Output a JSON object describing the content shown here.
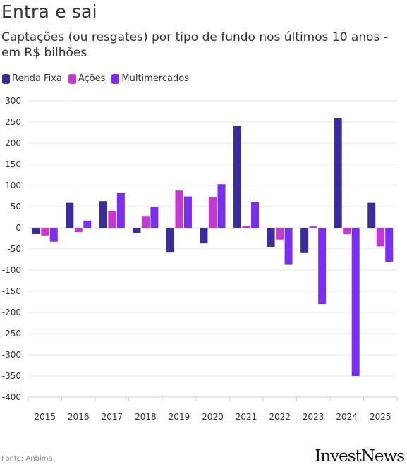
{
  "title": "Entra e sai",
  "subtitle": "Captações (ou resgates) por tipo de fundo nos últimos 10 anos - em R$ bilhões",
  "source": "Fonte: Anbima",
  "logo_text": "InvestNews",
  "colors": {
    "renda_fixa": "#3a2d99",
    "acoes": "#c438d3",
    "multimercados": "#7b2ef0"
  },
  "chart_data": {
    "type": "bar",
    "title": "Captações (ou resgates) por tipo de fundo nos últimos 10 anos - em R$ bilhões",
    "xlabel": "",
    "ylabel": "",
    "ylim": [
      -400,
      300
    ],
    "yticks": [
      300,
      250,
      200,
      150,
      100,
      50,
      0,
      -50,
      -100,
      -150,
      -200,
      -250,
      -300,
      -350,
      -400
    ],
    "grid": true,
    "legend_position": "top-left",
    "categories": [
      "2015",
      "2016",
      "2017",
      "2018",
      "2019",
      "2020",
      "2021",
      "2022",
      "2023",
      "2024",
      "2025"
    ],
    "series": [
      {
        "name": "Renda Fixa",
        "color": "#3a2d99",
        "values": [
          -15,
          59,
          63,
          -12,
          -57,
          -37,
          241,
          -45,
          -58,
          260,
          59
        ]
      },
      {
        "name": "Ações",
        "color": "#c438d3",
        "values": [
          -18,
          -10,
          40,
          28,
          88,
          72,
          5,
          -28,
          4,
          -15,
          -44
        ]
      },
      {
        "name": "Multimercados",
        "color": "#7b2ef0",
        "values": [
          -33,
          17,
          83,
          50,
          74,
          103,
          60,
          -86,
          -180,
          -350,
          -80
        ]
      }
    ]
  }
}
